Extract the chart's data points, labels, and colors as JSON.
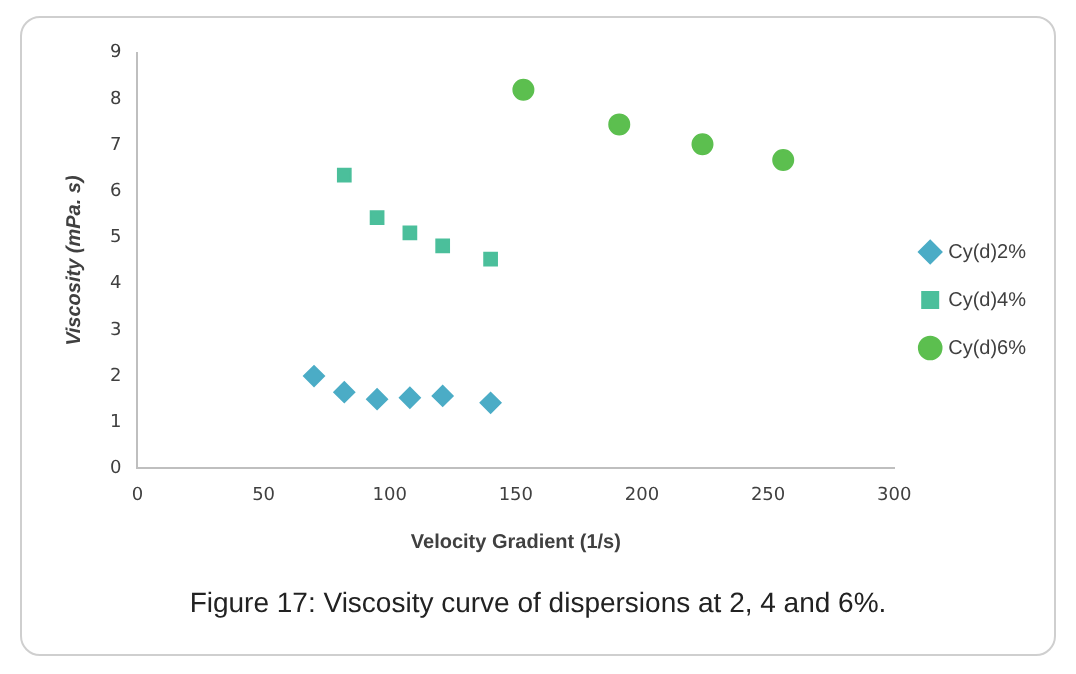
{
  "chart_data": {
    "type": "scatter",
    "title": "Figure 17: Viscosity curve of dispersions at 2, 4 and 6%.",
    "xlabel": "Velocity Gradient (1/s)",
    "ylabel": "Viscosity (mPa. s)",
    "xlim": [
      0,
      300
    ],
    "xticks": [
      0,
      50,
      100,
      150,
      200,
      250,
      300
    ],
    "ylim": [
      0,
      9
    ],
    "yticks": [
      0,
      1,
      2,
      3,
      4,
      5,
      6,
      7,
      8,
      9
    ],
    "grid": false,
    "legend": "right",
    "series": [
      {
        "name": "Cy(d)2%",
        "color": "#4bacc6",
        "marker": "diamond",
        "x": [
          70,
          82,
          95,
          108,
          121,
          140
        ],
        "values": [
          2.0,
          1.65,
          1.5,
          1.53,
          1.57,
          1.42
        ]
      },
      {
        "name": "Cy(d)4%",
        "color": "#4bbf9b",
        "marker": "square",
        "x": [
          82,
          95,
          108,
          121,
          140
        ],
        "values": [
          6.35,
          5.43,
          5.1,
          4.82,
          4.53
        ]
      },
      {
        "name": "Cy(d)6%",
        "color": "#5cbf4f",
        "marker": "circle",
        "x": [
          153,
          191,
          224,
          256
        ],
        "values": [
          8.2,
          7.45,
          7.02,
          6.68
        ]
      }
    ]
  }
}
